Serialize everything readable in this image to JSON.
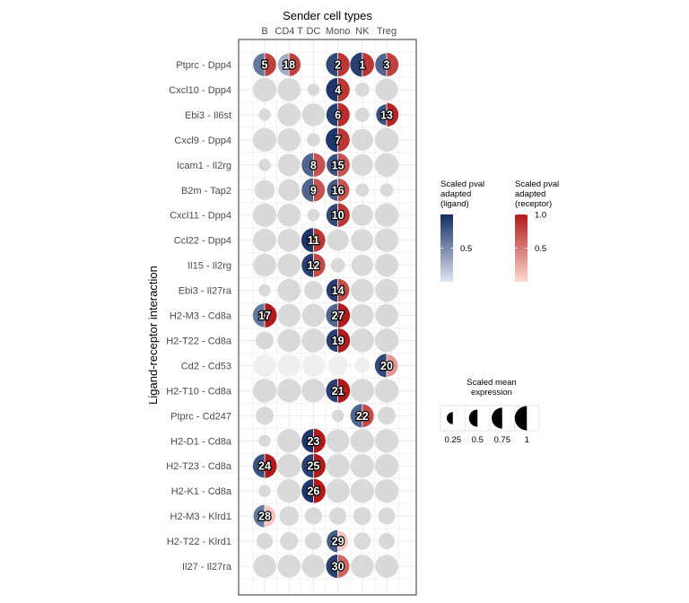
{
  "chart_data": {
    "type": "split-dot-matrix",
    "title": "",
    "xlabel": "Sender cell types",
    "ylabel": "Ligand-receptor interaction",
    "columns": [
      "B",
      "CD4 T",
      "DC",
      "Mono",
      "NK",
      "Treg"
    ],
    "rows": [
      "Ptprc - Dpp4",
      "Cxcl10 - Dpp4",
      "Ebi3 - Il6st",
      "Cxcl9 - Dpp4",
      "Icam1 - Il2rg",
      "B2m - Tap2",
      "Cxcl11 - Dpp4",
      "Ccl22 - Dpp4",
      "Il15 - Il2rg",
      "Ebi3 - Il27ra",
      "H2-M3 - Cd8a",
      "H2-T22 - Cd8a",
      "Cd2 - Cd53",
      "H2-T10 - Cd8a",
      "Ptprc - Cd247",
      "H2-D1 - Cd8a",
      "H2-T23 - Cd8a",
      "H2-K1 - Cd8a",
      "H2-M3 - Klrd1",
      "H2-T22 - Klrd1",
      "Il27 - Il27ra"
    ],
    "highlighted": [
      {
        "row": "Ptprc - Dpp4",
        "col": "B",
        "rank": "5",
        "lig_expr": 0.9,
        "rec_expr": 0.9,
        "lig_p": 0.6,
        "rec_p": 0.8
      },
      {
        "row": "Ptprc - Dpp4",
        "col": "CD4 T",
        "rank": "18",
        "lig_expr": 0.85,
        "rec_expr": 0.9,
        "lig_p": 0.3,
        "rec_p": 0.8
      },
      {
        "row": "Ptprc - Dpp4",
        "col": "Mono",
        "rank": "2",
        "lig_expr": 0.95,
        "rec_expr": 0.95,
        "lig_p": 0.85,
        "rec_p": 0.85
      },
      {
        "row": "Ptprc - Dpp4",
        "col": "NK",
        "rank": "1",
        "lig_expr": 1.0,
        "rec_expr": 0.95,
        "lig_p": 0.9,
        "rec_p": 0.85
      },
      {
        "row": "Ptprc - Dpp4",
        "col": "Treg",
        "rank": "3",
        "lig_expr": 0.9,
        "rec_expr": 0.95,
        "lig_p": 0.7,
        "rec_p": 0.8
      },
      {
        "row": "Cxcl10 - Dpp4",
        "col": "Mono",
        "rank": "4",
        "lig_expr": 0.95,
        "rec_expr": 0.95,
        "lig_p": 0.95,
        "rec_p": 0.85
      },
      {
        "row": "Ebi3 - Il6st",
        "col": "Mono",
        "rank": "6",
        "lig_expr": 0.9,
        "rec_expr": 0.95,
        "lig_p": 0.9,
        "rec_p": 0.9
      },
      {
        "row": "Ebi3 - Il6st",
        "col": "Treg",
        "rank": "13",
        "lig_expr": 0.75,
        "rec_expr": 0.95,
        "lig_p": 0.8,
        "rec_p": 0.95
      },
      {
        "row": "Cxcl9 - Dpp4",
        "col": "Mono",
        "rank": "7",
        "lig_expr": 1.0,
        "rec_expr": 0.95,
        "lig_p": 0.95,
        "rec_p": 0.85
      },
      {
        "row": "Icam1 - Il2rg",
        "col": "DC",
        "rank": "8",
        "lig_expr": 0.95,
        "rec_expr": 0.95,
        "lig_p": 0.7,
        "rec_p": 0.7
      },
      {
        "row": "Icam1 - Il2rg",
        "col": "Mono",
        "rank": "15",
        "lig_expr": 0.85,
        "rec_expr": 0.95,
        "lig_p": 0.8,
        "rec_p": 0.7
      },
      {
        "row": "B2m - Tap2",
        "col": "DC",
        "rank": "9",
        "lig_expr": 0.95,
        "rec_expr": 0.9,
        "lig_p": 0.7,
        "rec_p": 0.7
      },
      {
        "row": "B2m - Tap2",
        "col": "Mono",
        "rank": "16",
        "lig_expr": 0.8,
        "rec_expr": 0.9,
        "lig_p": 0.75,
        "rec_p": 0.7
      },
      {
        "row": "Cxcl11 - Dpp4",
        "col": "Mono",
        "rank": "10",
        "lig_expr": 0.9,
        "rec_expr": 0.95,
        "lig_p": 0.85,
        "rec_p": 0.85
      },
      {
        "row": "Ccl22 - Dpp4",
        "col": "DC",
        "rank": "11",
        "lig_expr": 1.0,
        "rec_expr": 0.95,
        "lig_p": 0.95,
        "rec_p": 0.85
      },
      {
        "row": "Il15 - Il2rg",
        "col": "DC",
        "rank": "12",
        "lig_expr": 0.95,
        "rec_expr": 0.95,
        "lig_p": 0.9,
        "rec_p": 0.75
      },
      {
        "row": "Ebi3 - Il27ra",
        "col": "Mono",
        "rank": "14",
        "lig_expr": 0.9,
        "rec_expr": 0.9,
        "lig_p": 0.9,
        "rec_p": 0.75
      },
      {
        "row": "H2-M3 - Cd8a",
        "col": "B",
        "rank": "17",
        "lig_expr": 0.95,
        "rec_expr": 1.0,
        "lig_p": 0.6,
        "rec_p": 1.0
      },
      {
        "row": "H2-M3 - Cd8a",
        "col": "Mono",
        "rank": "27",
        "lig_expr": 0.95,
        "rec_expr": 1.0,
        "lig_p": 0.7,
        "rec_p": 1.0
      },
      {
        "row": "H2-T22 - Cd8a",
        "col": "Mono",
        "rank": "19",
        "lig_expr": 0.9,
        "rec_expr": 1.0,
        "lig_p": 0.9,
        "rec_p": 1.0
      },
      {
        "row": "Cd2 - Cd53",
        "col": "Treg",
        "rank": "20",
        "lig_expr": 0.95,
        "rec_expr": 0.85,
        "lig_p": 0.85,
        "rec_p": 0.35
      },
      {
        "row": "H2-T10 - Cd8a",
        "col": "Mono",
        "rank": "21",
        "lig_expr": 0.95,
        "rec_expr": 1.0,
        "lig_p": 0.9,
        "rec_p": 1.0
      },
      {
        "row": "Ptprc - Cd247",
        "col": "NK",
        "rank": "22",
        "lig_expr": 0.95,
        "rec_expr": 0.9,
        "lig_p": 0.7,
        "rec_p": 0.75
      },
      {
        "row": "H2-D1 - Cd8a",
        "col": "DC",
        "rank": "23",
        "lig_expr": 0.95,
        "rec_expr": 1.0,
        "lig_p": 0.95,
        "rec_p": 1.0
      },
      {
        "row": "H2-T23 - Cd8a",
        "col": "B",
        "rank": "24",
        "lig_expr": 0.95,
        "rec_expr": 1.0,
        "lig_p": 0.8,
        "rec_p": 1.0
      },
      {
        "row": "H2-T23 - Cd8a",
        "col": "DC",
        "rank": "25",
        "lig_expr": 0.95,
        "rec_expr": 1.0,
        "lig_p": 0.9,
        "rec_p": 1.0
      },
      {
        "row": "H2-K1 - Cd8a",
        "col": "DC",
        "rank": "26",
        "lig_expr": 0.95,
        "rec_expr": 1.0,
        "lig_p": 0.95,
        "rec_p": 1.0
      },
      {
        "row": "H2-M3 - Klrd1",
        "col": "B",
        "rank": "28",
        "lig_expr": 0.85,
        "rec_expr": 0.8,
        "lig_p": 0.6,
        "rec_p": 0.1
      },
      {
        "row": "H2-T22 - Klrd1",
        "col": "Mono",
        "rank": "29",
        "lig_expr": 0.85,
        "rec_expr": 0.7,
        "lig_p": 0.75,
        "rec_p": 0.1
      },
      {
        "row": "Il27 - Il27ra",
        "col": "Mono",
        "rank": "30",
        "lig_expr": 0.95,
        "rec_expr": 0.9,
        "lig_p": 0.9,
        "rec_p": 0.6
      }
    ],
    "background_expression": [
      [
        0,
        0,
        0,
        0,
        0,
        0
      ],
      [
        0.95,
        0.9,
        0.25,
        0,
        0.35,
        0.85
      ],
      [
        0.25,
        0.9,
        0.9,
        0,
        0.35,
        0
      ],
      [
        0.95,
        0.9,
        0.3,
        0,
        0.8,
        0.95
      ],
      [
        0.25,
        0.85,
        0,
        0,
        0.8,
        0.95
      ],
      [
        0.7,
        0.8,
        0,
        0,
        0.3,
        0.3
      ],
      [
        0.95,
        0.9,
        0.25,
        0,
        0.8,
        0.95
      ],
      [
        0.9,
        0.9,
        0,
        0.8,
        0.85,
        0.95
      ],
      [
        0.9,
        0.9,
        0,
        0.35,
        0.8,
        0.9
      ],
      [
        0.25,
        0.9,
        0.6,
        0,
        0.9,
        0.9
      ],
      [
        0,
        0.9,
        0.9,
        0,
        0.9,
        0.9
      ],
      [
        0.55,
        0.9,
        0.95,
        0,
        0.95,
        0.95
      ],
      [
        0.85,
        0.85,
        0.85,
        0.65,
        0.4,
        0
      ],
      [
        0.95,
        0.95,
        0.95,
        0,
        0.95,
        0.95
      ],
      [
        0.55,
        0,
        0,
        0.25,
        0,
        0.55
      ],
      [
        0.25,
        0.95,
        0,
        0.9,
        0.95,
        0.95
      ],
      [
        0,
        0.95,
        0,
        0.95,
        0.95,
        0.95
      ],
      [
        0.25,
        0.95,
        0,
        0.95,
        0.95,
        0.95
      ],
      [
        0,
        0.65,
        0.5,
        0.5,
        0.55,
        0.5
      ],
      [
        0.45,
        0.55,
        0.5,
        0,
        0.5,
        0.45
      ],
      [
        0.9,
        0.9,
        0.9,
        0,
        0.9,
        0.9
      ]
    ],
    "legends": {
      "ligand_pval": {
        "title": [
          "Scaled pval",
          "adapted",
          "(ligand)"
        ],
        "ticks": [
          "0.5"
        ],
        "tick_values": [
          0.5
        ],
        "range": [
          0,
          1
        ],
        "color_low": "#dde6f2",
        "color_high": "#142d63"
      },
      "receptor_pval": {
        "title": [
          "Scaled pval",
          "adapted",
          "(receptor)"
        ],
        "ticks": [
          "1.0",
          "0.5"
        ],
        "tick_values": [
          1.0,
          0.5
        ],
        "range": [
          0,
          1
        ],
        "color_low": "#fbd9cf",
        "color_high": "#b01a1a"
      },
      "expression": {
        "title": [
          "Scaled mean",
          "expression"
        ],
        "ticks": [
          "0.25",
          "0.5",
          "0.75",
          "1"
        ],
        "tick_values": [
          0.25,
          0.5,
          0.75,
          1.0
        ]
      }
    },
    "colors": {
      "background_dot": "#d9d9d9",
      "grid": "#ebebeb",
      "panel_border": "#333333"
    }
  }
}
